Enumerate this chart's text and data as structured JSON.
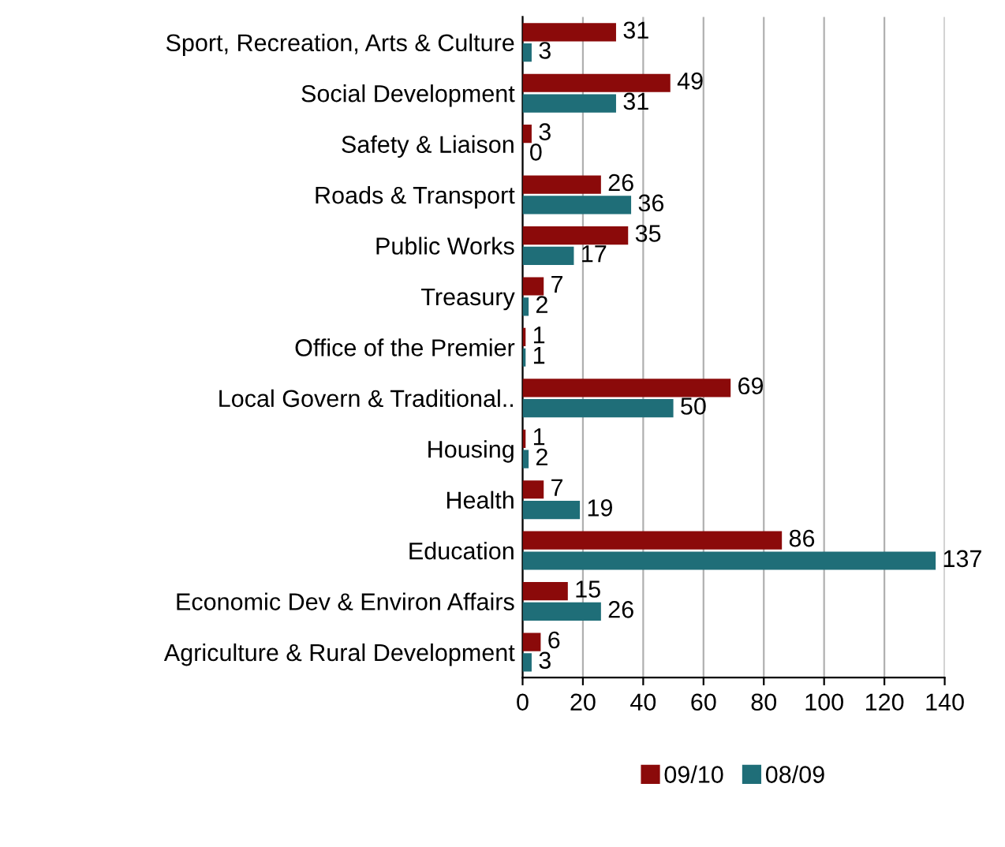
{
  "chart_data": {
    "type": "bar",
    "orientation": "horizontal",
    "categories": [
      "Sport, Recreation, Arts & Culture",
      "Social Development",
      "Safety & Liaison",
      "Roads & Transport",
      "Public Works",
      "Treasury",
      "Office of the Premier",
      "Local Govern & Traditional..",
      "Housing",
      "Health",
      "Education",
      "Economic Dev & Environ Affairs",
      "Agriculture & Rural Development"
    ],
    "series": [
      {
        "name": "09/10",
        "color": "#8b0a0a",
        "values": [
          31,
          49,
          3,
          26,
          35,
          7,
          1,
          69,
          1,
          7,
          86,
          15,
          6
        ]
      },
      {
        "name": "08/09",
        "color": "#1f6e78",
        "values": [
          3,
          31,
          0,
          36,
          17,
          2,
          1,
          50,
          2,
          19,
          137,
          26,
          3
        ]
      }
    ],
    "xlim": [
      0,
      140
    ],
    "xticks": [
      0,
      20,
      40,
      60,
      80,
      100,
      120,
      140
    ],
    "grid": "x",
    "legend": "bottom",
    "data_labels": true
  }
}
